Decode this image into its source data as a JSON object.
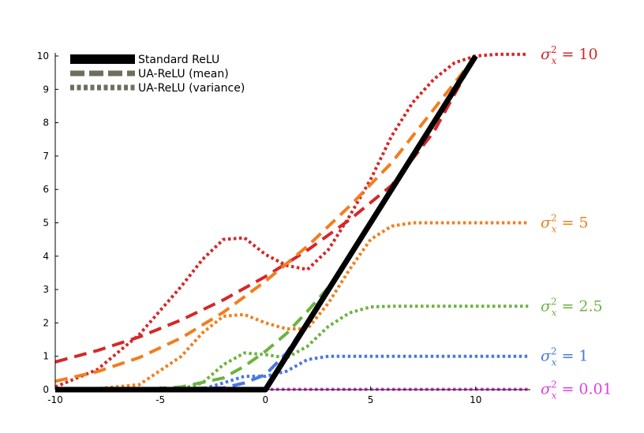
{
  "chart_data": {
    "type": "line",
    "title": "",
    "xlabel": "",
    "ylabel": "",
    "xlim": [
      -10,
      12.6
    ],
    "ylim": [
      0,
      10
    ],
    "xticks": [
      -10,
      -5,
      0,
      5,
      10
    ],
    "yticks": [
      0,
      1,
      2,
      3,
      4,
      5,
      6,
      7,
      8,
      9,
      10
    ],
    "xtick_labels": [
      "-10",
      "-5",
      "0",
      "5",
      "10"
    ],
    "ytick_labels": [
      "0",
      "1",
      "2",
      "3",
      "4",
      "5",
      "6",
      "7",
      "8",
      "9",
      "10"
    ],
    "grid": false,
    "legend_position": "top-left",
    "legend": [
      {
        "label": "Standard ReLU",
        "style": "solid",
        "color": "#000000"
      },
      {
        "label": "UA-ReLU (mean)",
        "style": "dashed",
        "color": "#6e6e5e"
      },
      {
        "label": "UA-ReLU (variance)",
        "style": "dotted",
        "color": "#6e6e5e"
      }
    ],
    "annotations": [
      {
        "prefix": "σ",
        "sup": "2",
        "sub": "x",
        "text": " = 10",
        "color": "#d62728",
        "y": 10.05
      },
      {
        "prefix": "σ",
        "sup": "2",
        "sub": "x",
        "text": " = 5",
        "color": "#f07f1e",
        "y": 5.0
      },
      {
        "prefix": "σ",
        "sup": "2",
        "sub": "x",
        "text": " = 2.5",
        "color": "#6db33f",
        "y": 2.5
      },
      {
        "prefix": "σ",
        "sup": "2",
        "sub": "x",
        "text": " = 1",
        "color": "#4a78e0",
        "y": 1.0
      },
      {
        "prefix": "σ",
        "sup": "2",
        "sub": "x",
        "text": " = 0.01",
        "color": "#e040e0",
        "y": 0.01
      }
    ],
    "series": [
      {
        "variance": 10,
        "kind": "mean",
        "color": "#d62728",
        "x_end": 10.0,
        "x": [
          -10,
          -8,
          -6,
          -4,
          -2,
          0,
          2,
          4,
          6,
          8,
          10
        ],
        "y": [
          0.83,
          1.17,
          1.58,
          2.09,
          2.69,
          3.39,
          4.18,
          5.09,
          6.12,
          7.72,
          10.0
        ]
      },
      {
        "variance": 10,
        "kind": "variance",
        "color": "#d62728",
        "x_end": 12.5,
        "x": [
          -10,
          -8,
          -6,
          -4,
          -3,
          -2,
          -1,
          0,
          1,
          2,
          3,
          4,
          5,
          6,
          7,
          8,
          9,
          10,
          11,
          12.5
        ],
        "y": [
          0.08,
          0.6,
          1.65,
          3.1,
          3.9,
          4.5,
          4.55,
          4.05,
          3.72,
          3.6,
          4.2,
          5.2,
          6.3,
          7.6,
          8.6,
          9.3,
          9.8,
          10.0,
          10.05,
          10.05
        ]
      },
      {
        "variance": 5,
        "kind": "mean",
        "color": "#f07f1e",
        "x_end": 10.0,
        "x": [
          -10,
          -8,
          -6,
          -4,
          -2,
          0,
          2,
          4,
          6,
          8,
          10
        ],
        "y": [
          0.25,
          0.54,
          0.96,
          1.55,
          2.32,
          3.25,
          4.3,
          5.5,
          6.8,
          8.4,
          10.0
        ]
      },
      {
        "variance": 5,
        "kind": "variance",
        "color": "#f07f1e",
        "x_end": 12.5,
        "x": [
          -10,
          -8,
          -6,
          -4,
          -3,
          -2,
          -1,
          0,
          1,
          2,
          3,
          4,
          5,
          6,
          7,
          8,
          10,
          12.5
        ],
        "y": [
          0.02,
          0.03,
          0.15,
          1.0,
          1.7,
          2.2,
          2.25,
          2.0,
          1.82,
          1.82,
          2.6,
          3.6,
          4.5,
          4.9,
          5.0,
          5.0,
          5.0,
          5.0
        ]
      },
      {
        "variance": 2.5,
        "kind": "mean",
        "color": "#6db33f",
        "x_end": 10.0,
        "x": [
          -10,
          -6,
          -4,
          -2,
          -1,
          0,
          1,
          2,
          3,
          4,
          6,
          8,
          10
        ],
        "y": [
          0.0,
          0.0,
          0.08,
          0.35,
          0.7,
          1.15,
          1.68,
          2.35,
          3.07,
          4.0,
          6.0,
          8.0,
          10.0
        ]
      },
      {
        "variance": 2.5,
        "kind": "variance",
        "color": "#6db33f",
        "x_end": 12.5,
        "x": [
          -10,
          -4,
          -3,
          -2,
          -1,
          0,
          1,
          2,
          3,
          4,
          5,
          6,
          8,
          12.5
        ],
        "y": [
          0.0,
          0.02,
          0.2,
          0.75,
          1.1,
          1.05,
          0.95,
          1.3,
          1.9,
          2.3,
          2.48,
          2.5,
          2.5,
          2.5
        ]
      },
      {
        "variance": 1,
        "kind": "mean",
        "color": "#4a78e0",
        "x_end": 10.0,
        "x": [
          -10,
          -2,
          -1,
          0,
          1,
          2,
          3,
          4,
          6,
          8,
          10
        ],
        "y": [
          0.0,
          0.05,
          0.2,
          0.45,
          1.1,
          2.05,
          3.0,
          4.0,
          6.0,
          8.0,
          10.0
        ]
      },
      {
        "variance": 1,
        "kind": "variance",
        "color": "#4a78e0",
        "x_end": 12.5,
        "x": [
          -10,
          -3,
          -2,
          -1,
          0,
          1,
          2,
          3,
          4,
          5,
          12.5
        ],
        "y": [
          0.0,
          0.02,
          0.2,
          0.4,
          0.4,
          0.55,
          0.9,
          1.0,
          1.0,
          1.0,
          1.0
        ]
      },
      {
        "variance": 0.01,
        "kind": "mean",
        "color": "#e040e0",
        "x_end": 10.0,
        "x": [
          -10,
          -0.5,
          0,
          0.5,
          1,
          2,
          4,
          6,
          8,
          10
        ],
        "y": [
          0.0,
          0.0,
          0.04,
          0.5,
          1.0,
          2.0,
          4.0,
          6.0,
          8.0,
          10.0
        ]
      },
      {
        "variance": 0.01,
        "kind": "variance",
        "color": "#e040e0",
        "x_end": 12.5,
        "x": [
          -10,
          12.5
        ],
        "y": [
          0.01,
          0.01
        ]
      },
      {
        "variance": null,
        "kind": "relu",
        "color": "#000000",
        "x_end": 10.0,
        "x": [
          -10,
          0,
          10
        ],
        "y": [
          0.0,
          0.0,
          10.0
        ]
      }
    ]
  }
}
